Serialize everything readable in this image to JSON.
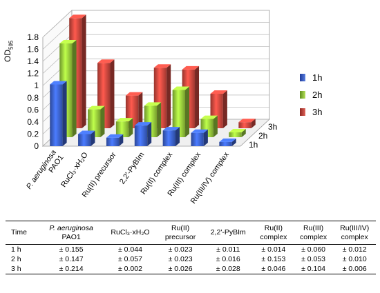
{
  "chart_data": {
    "type": "bar",
    "ylabel_main": "OD",
    "ylabel_sub": "595",
    "ylim": [
      0,
      1.8
    ],
    "yticks": [
      "0",
      "0.2",
      "0.4",
      "0.6",
      "0.8",
      "1",
      "1.2",
      "1.4",
      "1.6",
      "1.8"
    ],
    "categories": [
      {
        "line1": "P. aeruginosa",
        "line2": "PAO1",
        "italic": true
      },
      {
        "line1": "RuCl₃·xH₂O",
        "line2": "",
        "italic": false
      },
      {
        "line1": "Ru(II) precursor",
        "line2": "",
        "italic": false
      },
      {
        "line1": "2,2'-PyBIm",
        "line2": "",
        "italic": false
      },
      {
        "line1": "Ru(II) complex",
        "line2": "",
        "italic": false
      },
      {
        "line1": "Ru(III) complex",
        "line2": "",
        "italic": false
      },
      {
        "line1": "Ru(III/IV) complex",
        "line2": "",
        "italic": false
      }
    ],
    "depth_labels": [
      "1h",
      "2h",
      "3h"
    ],
    "series": [
      {
        "name": "1h",
        "color": "#3a5fc8",
        "values": [
          1.02,
          0.2,
          0.14,
          0.34,
          0.26,
          0.22,
          0.07
        ]
      },
      {
        "name": "2h",
        "color": "#93c63a",
        "values": [
          1.55,
          0.46,
          0.26,
          0.52,
          0.78,
          0.3,
          0.08
        ]
      },
      {
        "name": "3h",
        "color": "#c6453c",
        "values": [
          1.82,
          1.08,
          0.54,
          1.0,
          0.97,
          0.57,
          0.1
        ]
      }
    ],
    "legend_position": "right"
  },
  "legend": {
    "items": [
      "1h",
      "2h",
      "3h"
    ]
  },
  "sd_table": {
    "headers": {
      "time": "Time",
      "c1_line1": "P. aeruginosa",
      "c1_line2": "PAO1",
      "c2_line1": "RuCl₃·xH₂O",
      "c2_line2": "",
      "c3_line1": "Ru(II)",
      "c3_line2": "precursor",
      "c4_line1": "2,2'-PyBIm",
      "c4_line2": "",
      "c5_line1": "Ru(II)",
      "c5_line2": "complex",
      "c6_line1": "Ru(III)",
      "c6_line2": "complex",
      "c7_line1": "Ru(III/IV)",
      "c7_line2": "complex"
    },
    "rows": [
      {
        "time": "1 h",
        "values": [
          "± 0.155",
          "± 0.044",
          "± 0.023",
          "± 0.011",
          "± 0.014",
          "± 0.060",
          "± 0.012"
        ]
      },
      {
        "time": "2 h",
        "values": [
          "± 0.147",
          "± 0.057",
          "± 0.023",
          "± 0.016",
          "± 0.153",
          "± 0.053",
          "± 0.010"
        ]
      },
      {
        "time": "3 h",
        "values": [
          "± 0.214",
          "± 0.002",
          "± 0.026",
          "± 0.028",
          "± 0.046",
          "± 0.104",
          "± 0.006"
        ]
      }
    ]
  }
}
